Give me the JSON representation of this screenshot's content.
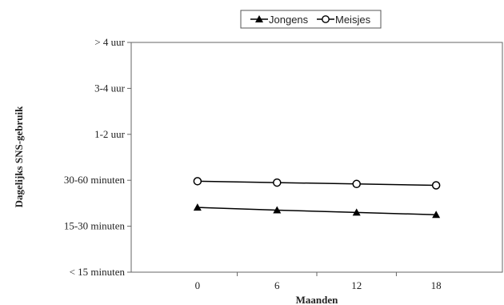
{
  "chart_data": {
    "type": "line",
    "xlabel": "Maanden",
    "ylabel": "Dagelijks SNS-gebruik",
    "x": [
      0,
      6,
      12,
      18
    ],
    "x_ticks": [
      "0",
      "6",
      "12",
      "18"
    ],
    "y_categories": [
      "< 15 minuten",
      "15-30 minuten",
      "30-60 minuten",
      "1-2 uur",
      "3-4 uur",
      "> 4 uur"
    ],
    "ylim": [
      1,
      6
    ],
    "series": [
      {
        "name": "Jongens",
        "marker": "filled-triangle",
        "color": "#000000",
        "values": [
          2.41,
          2.35,
          2.3,
          2.25
        ]
      },
      {
        "name": "Meisjes",
        "marker": "open-circle",
        "color": "#000000",
        "values": [
          2.98,
          2.95,
          2.92,
          2.89
        ]
      }
    ],
    "legend_position": "top-center",
    "grid": false
  }
}
